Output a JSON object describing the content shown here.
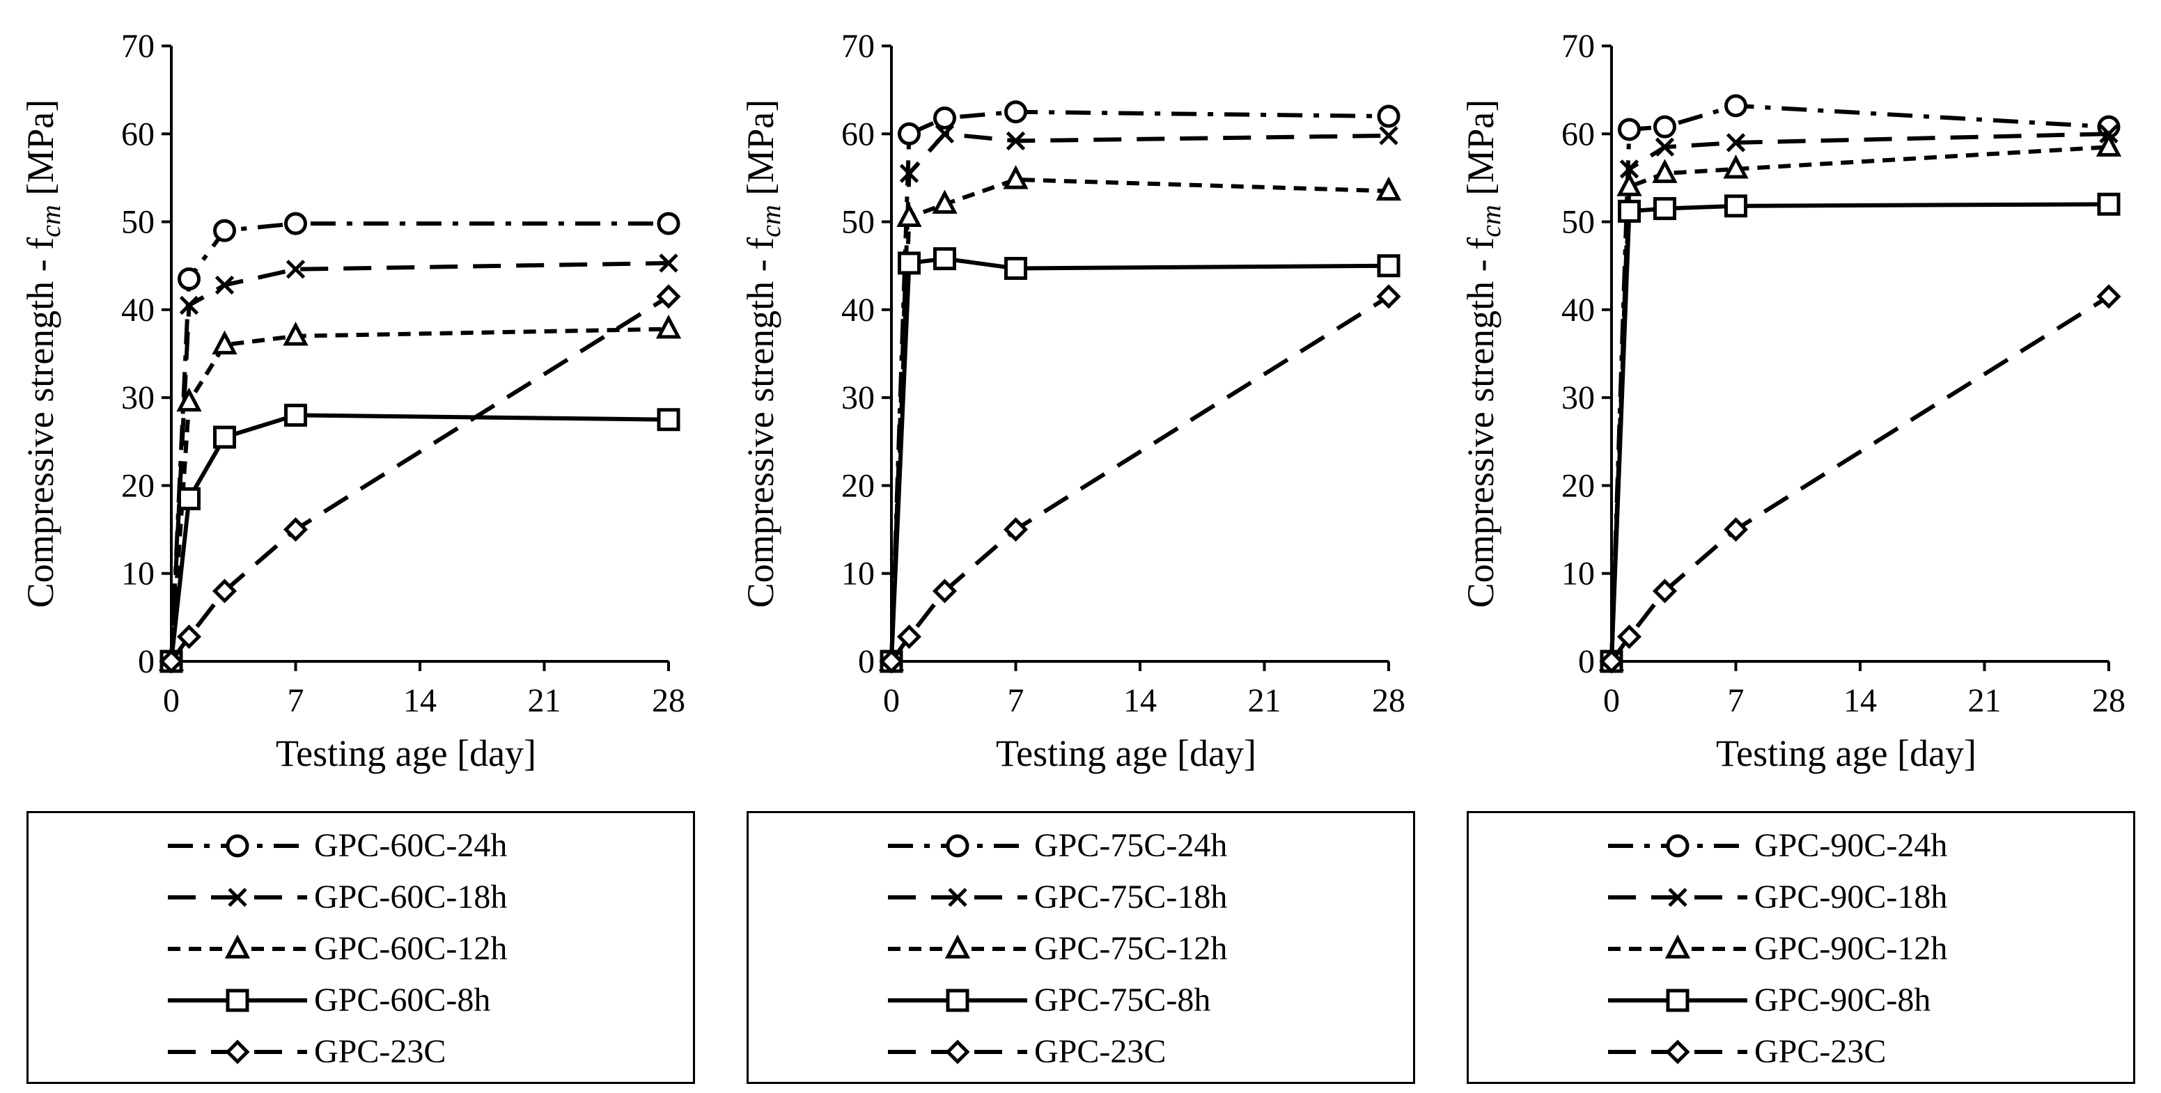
{
  "chart_data": [
    {
      "type": "line",
      "ylabel": "Compressive strength - f",
      "ylabel_sub": "cm",
      "ylabel_unit": " [MPa]",
      "xlabel": "Testing age [day]",
      "xlim": [
        0,
        28
      ],
      "ylim": [
        0,
        70
      ],
      "xticks": [
        0,
        7,
        14,
        21,
        28
      ],
      "yticks": [
        0,
        10,
        20,
        30,
        40,
        50,
        60,
        70
      ],
      "series": [
        {
          "name": "GPC-60C-24h",
          "marker": "circle",
          "dash": "dashdot",
          "x": [
            0,
            1,
            3,
            7,
            28
          ],
          "y": [
            0,
            43.5,
            49,
            49.8,
            49.8
          ]
        },
        {
          "name": "GPC-60C-18h",
          "marker": "x",
          "dash": "longdash",
          "x": [
            0,
            1,
            3,
            7,
            28
          ],
          "y": [
            0,
            40.5,
            42.8,
            44.6,
            45.3
          ]
        },
        {
          "name": "GPC-60C-12h",
          "marker": "triangle",
          "dash": "shortdash",
          "x": [
            0,
            1,
            3,
            7,
            28
          ],
          "y": [
            0,
            29.5,
            36,
            37,
            37.8
          ]
        },
        {
          "name": "GPC-60C-8h",
          "marker": "square",
          "dash": "solid",
          "x": [
            0,
            1,
            3,
            7,
            28
          ],
          "y": [
            0,
            18.5,
            25.5,
            28,
            27.5
          ]
        },
        {
          "name": "GPC-23C",
          "marker": "diamond",
          "dash": "longdash",
          "x": [
            0,
            1,
            3,
            7,
            28
          ],
          "y": [
            0,
            2.8,
            8,
            15,
            41.5
          ]
        }
      ]
    },
    {
      "type": "line",
      "ylabel": "Compressive strength - f",
      "ylabel_sub": "cm",
      "ylabel_unit": " [MPa]",
      "xlabel": "Testing age [day]",
      "xlim": [
        0,
        28
      ],
      "ylim": [
        0,
        70
      ],
      "xticks": [
        0,
        7,
        14,
        21,
        28
      ],
      "yticks": [
        0,
        10,
        20,
        30,
        40,
        50,
        60,
        70
      ],
      "series": [
        {
          "name": "GPC-75C-24h",
          "marker": "circle",
          "dash": "dashdot",
          "x": [
            0,
            1,
            3,
            7,
            28
          ],
          "y": [
            0,
            60,
            61.8,
            62.5,
            62
          ]
        },
        {
          "name": "GPC-75C-18h",
          "marker": "x",
          "dash": "longdash",
          "x": [
            0,
            1,
            3,
            7,
            28
          ],
          "y": [
            0,
            55.5,
            60,
            59.2,
            59.8
          ]
        },
        {
          "name": "GPC-75C-12h",
          "marker": "triangle",
          "dash": "shortdash",
          "x": [
            0,
            1,
            3,
            7,
            28
          ],
          "y": [
            0,
            50.5,
            52,
            54.8,
            53.5
          ]
        },
        {
          "name": "GPC-75C-8h",
          "marker": "square",
          "dash": "solid",
          "x": [
            0,
            1,
            3,
            7,
            28
          ],
          "y": [
            0,
            45.3,
            45.8,
            44.7,
            45
          ]
        },
        {
          "name": "GPC-23C",
          "marker": "diamond",
          "dash": "longdash",
          "x": [
            0,
            1,
            3,
            7,
            28
          ],
          "y": [
            0,
            2.8,
            8,
            15,
            41.5
          ]
        }
      ]
    },
    {
      "type": "line",
      "ylabel": "Compressive strength - f",
      "ylabel_sub": "cm",
      "ylabel_unit": " [MPa]",
      "xlabel": "Testing age [day]",
      "xlim": [
        0,
        28
      ],
      "ylim": [
        0,
        70
      ],
      "xticks": [
        0,
        7,
        14,
        21,
        28
      ],
      "yticks": [
        0,
        10,
        20,
        30,
        40,
        50,
        60,
        70
      ],
      "series": [
        {
          "name": "GPC-90C-24h",
          "marker": "circle",
          "dash": "dashdot",
          "x": [
            0,
            1,
            3,
            7,
            28
          ],
          "y": [
            0,
            60.5,
            60.8,
            63.2,
            60.8
          ]
        },
        {
          "name": "GPC-90C-18h",
          "marker": "x",
          "dash": "longdash",
          "x": [
            0,
            1,
            3,
            7,
            28
          ],
          "y": [
            0,
            56,
            58.5,
            59,
            60
          ]
        },
        {
          "name": "GPC-90C-12h",
          "marker": "triangle",
          "dash": "shortdash",
          "x": [
            0,
            1,
            3,
            7,
            28
          ],
          "y": [
            0,
            54,
            55.5,
            56,
            58.5
          ]
        },
        {
          "name": "GPC-90C-8h",
          "marker": "square",
          "dash": "solid",
          "x": [
            0,
            1,
            3,
            7,
            28
          ],
          "y": [
            0,
            51.2,
            51.5,
            51.8,
            52
          ]
        },
        {
          "name": "GPC-23C",
          "marker": "diamond",
          "dash": "longdash",
          "x": [
            0,
            1,
            3,
            7,
            28
          ],
          "y": [
            0,
            2.8,
            8,
            15,
            41.5
          ]
        }
      ]
    }
  ]
}
